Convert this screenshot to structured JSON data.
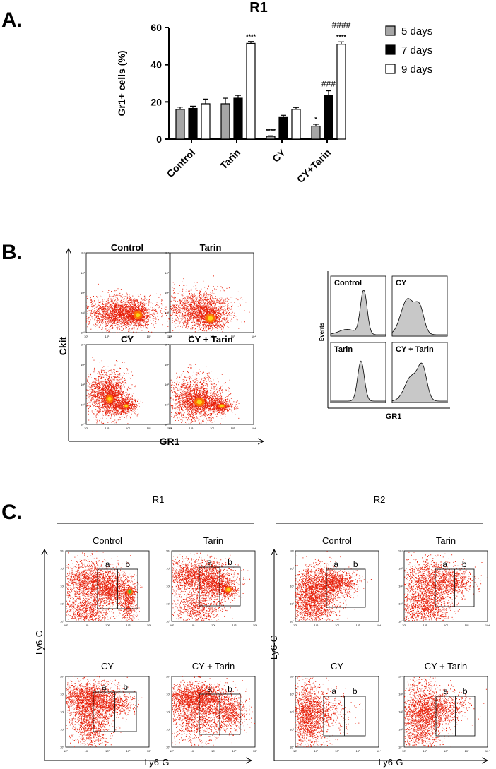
{
  "panels": {
    "a": "A.",
    "b": "B.",
    "c": "C."
  },
  "chart_data": {
    "type": "bar",
    "title": "R1",
    "ylabel": "Gr1+ cells (%)",
    "xlabel": "",
    "ylim": [
      0,
      60
    ],
    "yticks": [
      "0",
      "20",
      "40",
      "60"
    ],
    "categories": [
      "Control",
      "Tarin",
      "CY",
      "CY+Tarin"
    ],
    "series": [
      {
        "name": "5 days",
        "color": "#a6a6a6",
        "values": [
          16,
          19,
          1.5,
          7
        ],
        "errors": [
          1.2,
          3,
          0.3,
          1
        ]
      },
      {
        "name": "7 days",
        "color": "#000000",
        "values": [
          16.5,
          22,
          12,
          23.5
        ],
        "errors": [
          1.2,
          1.5,
          0.8,
          2.5
        ]
      },
      {
        "name": "9 days",
        "color": "#ffffff",
        "values": [
          19,
          51.5,
          16,
          51
        ],
        "errors": [
          2.5,
          1,
          1,
          1.3
        ]
      }
    ],
    "annotations": [
      {
        "category": 1,
        "series": 2,
        "text": "****"
      },
      {
        "category": 2,
        "series": 0,
        "text": "****"
      },
      {
        "category": 3,
        "series": 0,
        "text": "*"
      },
      {
        "category": 3,
        "series": 1,
        "text": "###"
      },
      {
        "category": 3,
        "series": 2,
        "text": "****"
      },
      {
        "category": 3,
        "series": 2,
        "text": "####"
      }
    ]
  },
  "panel_b": {
    "dot_labels": [
      "Control",
      "Tarin",
      "CY",
      "CY + Tarin"
    ],
    "y_axis": "Ckit",
    "x_axis": "GR1",
    "hist_labels": [
      "Control",
      "CY",
      "Tarin",
      "CY + Tarin"
    ],
    "hist_y_axis": "Events",
    "hist_x_axis": "GR1",
    "ticks": [
      "10⁰",
      "10¹",
      "10²",
      "10³",
      "10⁴"
    ]
  },
  "panel_c": {
    "groups": [
      "R1",
      "R2"
    ],
    "plot_labels": [
      "Control",
      "Tarin",
      "CY",
      "CY + Tarin"
    ],
    "gates": [
      "a",
      "b"
    ],
    "y_axis": "Ly6-C",
    "x_axis": "Ly6-G",
    "ticks": [
      "10⁰",
      "10¹",
      "10²",
      "10³",
      "10⁴"
    ]
  }
}
